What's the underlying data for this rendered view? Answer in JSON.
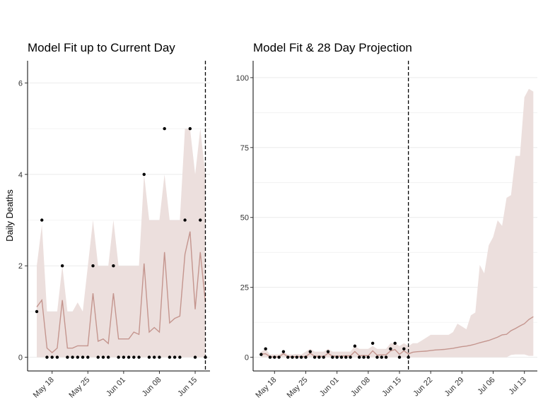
{
  "colors": {
    "ribbon": "#ecdfdd",
    "line": "#c4958e",
    "point": "#000000",
    "grid": "#ebebeb"
  },
  "ylabel": "Daily Deaths",
  "chart_data": [
    {
      "type": "line",
      "title": "Model Fit up to Current Day",
      "xlabel": "",
      "ylabel": "Daily Deaths",
      "x_dates": [
        "2020-05-15",
        "2020-05-16",
        "2020-05-17",
        "2020-05-18",
        "2020-05-19",
        "2020-05-20",
        "2020-05-21",
        "2020-05-22",
        "2020-05-23",
        "2020-05-24",
        "2020-05-25",
        "2020-05-26",
        "2020-05-27",
        "2020-05-28",
        "2020-05-29",
        "2020-05-30",
        "2020-05-31",
        "2020-06-01",
        "2020-06-02",
        "2020-06-03",
        "2020-06-04",
        "2020-06-05",
        "2020-06-06",
        "2020-06-07",
        "2020-06-08",
        "2020-06-09",
        "2020-06-10",
        "2020-06-11",
        "2020-06-12",
        "2020-06-13",
        "2020-06-14",
        "2020-06-15",
        "2020-06-16",
        "2020-06-17"
      ],
      "observed": [
        1,
        3,
        0,
        0,
        0,
        2,
        0,
        0,
        0,
        0,
        0,
        2,
        0,
        0,
        0,
        2,
        0,
        0,
        0,
        0,
        0,
        4,
        0,
        0,
        0,
        5,
        0,
        0,
        0,
        3,
        5,
        0,
        3,
        0
      ],
      "fit_median": [
        1.1,
        1.25,
        0.2,
        0.1,
        0.2,
        1.25,
        0.2,
        0.2,
        0.25,
        0.25,
        0.25,
        1.4,
        0.35,
        0.4,
        0.3,
        1.4,
        0.4,
        0.4,
        0.4,
        0.55,
        0.5,
        2.05,
        0.55,
        0.65,
        0.55,
        2.3,
        0.75,
        0.85,
        0.9,
        2.25,
        2.75,
        1.05,
        2.3,
        1.2
      ],
      "fit_lower": [
        0,
        0,
        0,
        0,
        0,
        0,
        0,
        0,
        0,
        0,
        0,
        0,
        0,
        0,
        0,
        0,
        0,
        0,
        0,
        0,
        0,
        0,
        0,
        0,
        0,
        0,
        0,
        0,
        0,
        0,
        0,
        0,
        0,
        0
      ],
      "fit_upper": [
        2,
        2.9,
        1,
        1,
        1,
        2,
        1,
        1,
        1.2,
        1,
        2,
        3,
        2,
        2,
        2,
        3,
        2,
        2,
        2,
        2,
        2,
        4,
        3,
        3,
        3,
        4,
        3,
        3,
        3,
        5,
        5,
        4,
        5,
        4
      ],
      "vline_date": "2020-06-17",
      "ylim": [
        0,
        6.3
      ],
      "yticks": [
        "0",
        "2",
        "4",
        "6"
      ],
      "xtick_labels": [
        "May 18",
        "May 25",
        "Jun 01",
        "Jun 08",
        "Jun 15"
      ],
      "xtick_dates": [
        "2020-05-18",
        "2020-05-25",
        "2020-06-01",
        "2020-06-08",
        "2020-06-15"
      ],
      "grid": true,
      "legend": "none"
    },
    {
      "type": "line",
      "title": "Model Fit & 28 Day Projection",
      "xlabel": "",
      "ylabel": "",
      "x_dates": [
        "2020-05-15",
        "2020-05-16",
        "2020-05-17",
        "2020-05-18",
        "2020-05-19",
        "2020-05-20",
        "2020-05-21",
        "2020-05-22",
        "2020-05-23",
        "2020-05-24",
        "2020-05-25",
        "2020-05-26",
        "2020-05-27",
        "2020-05-28",
        "2020-05-29",
        "2020-05-30",
        "2020-05-31",
        "2020-06-01",
        "2020-06-02",
        "2020-06-03",
        "2020-06-04",
        "2020-06-05",
        "2020-06-06",
        "2020-06-07",
        "2020-06-08",
        "2020-06-09",
        "2020-06-10",
        "2020-06-11",
        "2020-06-12",
        "2020-06-13",
        "2020-06-14",
        "2020-06-15",
        "2020-06-16",
        "2020-06-17",
        "2020-06-18",
        "2020-06-19",
        "2020-06-20",
        "2020-06-21",
        "2020-06-22",
        "2020-06-23",
        "2020-06-24",
        "2020-06-25",
        "2020-06-26",
        "2020-06-27",
        "2020-06-28",
        "2020-06-29",
        "2020-06-30",
        "2020-07-01",
        "2020-07-02",
        "2020-07-03",
        "2020-07-04",
        "2020-07-05",
        "2020-07-06",
        "2020-07-07",
        "2020-07-08",
        "2020-07-09",
        "2020-07-10",
        "2020-07-11",
        "2020-07-12",
        "2020-07-13",
        "2020-07-14",
        "2020-07-15"
      ],
      "observed": [
        1,
        3,
        0,
        0,
        0,
        2,
        0,
        0,
        0,
        0,
        0,
        2,
        0,
        0,
        0,
        2,
        0,
        0,
        0,
        0,
        0,
        4,
        0,
        0,
        0,
        5,
        0,
        0,
        0,
        3,
        5,
        0,
        3,
        0
      ],
      "fit_median": [
        1.1,
        1.25,
        0.2,
        0.1,
        0.2,
        1.25,
        0.2,
        0.2,
        0.25,
        0.25,
        0.25,
        1.4,
        0.35,
        0.4,
        0.3,
        1.4,
        0.4,
        0.4,
        0.4,
        0.55,
        0.5,
        2.05,
        0.55,
        0.65,
        0.55,
        2.3,
        0.75,
        0.85,
        0.9,
        2.25,
        2.75,
        1.05,
        2.3,
        1.2,
        1.8,
        2,
        2.1,
        2.2,
        2.4,
        2.6,
        2.7,
        2.8,
        3,
        3.2,
        3.5,
        3.8,
        4,
        4.3,
        4.7,
        5.2,
        5.6,
        6,
        6.6,
        7.2,
        8,
        8.2,
        9.5,
        10.3,
        11.2,
        12,
        13.5,
        14.5
      ],
      "fit_lower": [
        0,
        0,
        0,
        0,
        0,
        0,
        0,
        0,
        0,
        0,
        0,
        0,
        0,
        0,
        0,
        0,
        0,
        0,
        0,
        0,
        0,
        0,
        0,
        0,
        0,
        0,
        0,
        0,
        0,
        0,
        0,
        0,
        0,
        0,
        0,
        0,
        0,
        0,
        0,
        0,
        0,
        0,
        0,
        0,
        0,
        0,
        0,
        0,
        0,
        0,
        0,
        0,
        0,
        0,
        0,
        0,
        0.8,
        1,
        1,
        1,
        0.5,
        0.5
      ],
      "fit_upper": [
        2,
        2.9,
        1,
        1,
        1,
        2,
        1,
        1,
        1.2,
        1,
        2,
        3,
        2,
        2,
        2,
        3,
        2,
        2,
        2,
        2,
        2,
        4,
        3,
        3,
        3,
        4,
        3,
        3,
        3,
        5,
        5,
        4,
        5,
        4,
        5,
        5,
        6,
        7,
        8,
        8,
        8,
        8,
        8,
        9,
        12,
        11,
        10,
        15,
        16,
        33,
        30,
        40,
        43,
        49,
        47,
        57,
        58,
        72,
        72,
        93,
        96,
        95
      ],
      "vline_date": "2020-06-17",
      "ylim": [
        0,
        103
      ],
      "yticks": [
        "0",
        "25",
        "50",
        "75",
        "100"
      ],
      "xtick_labels": [
        "May 18",
        "May 25",
        "Jun 01",
        "Jun 08",
        "Jun 15",
        "Jun 22",
        "Jun 29",
        "Jul 06",
        "Jul 13"
      ],
      "xtick_dates": [
        "2020-05-18",
        "2020-05-25",
        "2020-06-01",
        "2020-06-08",
        "2020-06-15",
        "2020-06-22",
        "2020-06-29",
        "2020-07-06",
        "2020-07-13"
      ],
      "grid": true,
      "legend": "none"
    }
  ]
}
